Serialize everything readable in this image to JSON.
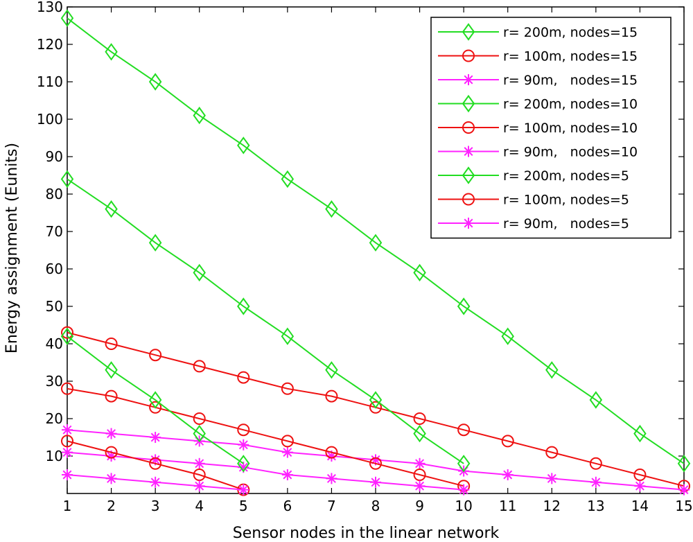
{
  "chart_data": {
    "type": "line",
    "title": "",
    "xlabel": "Sensor nodes in the linear network",
    "ylabel": "Energy assignment (Eunits)",
    "xlim": [
      1,
      15
    ],
    "ylim": [
      0,
      130
    ],
    "xticks": [
      "1",
      "2",
      "3",
      "4",
      "5",
      "6",
      "7",
      "8",
      "9",
      "10",
      "11",
      "12",
      "13",
      "14",
      "15"
    ],
    "yticks": [
      "10",
      "20",
      "30",
      "40",
      "50",
      "60",
      "70",
      "80",
      "90",
      "100",
      "110",
      "120",
      "130"
    ],
    "grid": false,
    "legend_position": "top-right",
    "colors": {
      "green": "#22dd22",
      "red": "#ee1111",
      "magenta": "#ff22ff"
    },
    "series": [
      {
        "name": "r= 200m, nodes=15",
        "color": "green",
        "marker": "diamond",
        "x": [
          1,
          2,
          3,
          4,
          5,
          6,
          7,
          8,
          9,
          10,
          11,
          12,
          13,
          14,
          15
        ],
        "y": [
          127,
          118,
          110,
          101,
          93,
          84,
          76,
          67,
          59,
          50,
          42,
          33,
          25,
          16,
          8
        ]
      },
      {
        "name": "r= 100m, nodes=15",
        "color": "red",
        "marker": "circle",
        "x": [
          1,
          2,
          3,
          4,
          5,
          6,
          7,
          8,
          9,
          10,
          11,
          12,
          13,
          14,
          15
        ],
        "y": [
          43,
          40,
          37,
          34,
          31,
          28,
          26,
          23,
          20,
          17,
          14,
          11,
          8,
          5,
          2
        ]
      },
      {
        "name": "r= 90m,   nodes=15",
        "color": "magenta",
        "marker": "star",
        "x": [
          1,
          2,
          3,
          4,
          5,
          6,
          7,
          8,
          9,
          10,
          11,
          12,
          13,
          14,
          15
        ],
        "y": [
          17,
          16,
          15,
          14,
          13,
          11,
          10,
          9,
          8,
          6,
          5,
          4,
          3,
          2,
          1
        ]
      },
      {
        "name": "r= 200m, nodes=10",
        "color": "green",
        "marker": "diamond",
        "x": [
          1,
          2,
          3,
          4,
          5,
          6,
          7,
          8,
          9,
          10
        ],
        "y": [
          84,
          76,
          67,
          59,
          50,
          42,
          33,
          25,
          16,
          8
        ]
      },
      {
        "name": "r= 100m, nodes=10",
        "color": "red",
        "marker": "circle",
        "x": [
          1,
          2,
          3,
          4,
          5,
          6,
          7,
          8,
          9,
          10
        ],
        "y": [
          28,
          26,
          23,
          20,
          17,
          14,
          11,
          8,
          5,
          2
        ]
      },
      {
        "name": "r= 90m,   nodes=10",
        "color": "magenta",
        "marker": "star",
        "x": [
          1,
          2,
          3,
          4,
          5,
          6,
          7,
          8,
          9,
          10
        ],
        "y": [
          11,
          10,
          9,
          8,
          7,
          5,
          4,
          3,
          2,
          1
        ]
      },
      {
        "name": "r= 200m, nodes=5",
        "color": "green",
        "marker": "diamond",
        "x": [
          1,
          2,
          3,
          4,
          5
        ],
        "y": [
          42,
          33,
          25,
          16,
          8
        ]
      },
      {
        "name": "r= 100m, nodes=5",
        "color": "red",
        "marker": "circle",
        "x": [
          1,
          2,
          3,
          4,
          5
        ],
        "y": [
          14,
          11,
          8,
          5,
          1
        ]
      },
      {
        "name": "r= 90m,   nodes=5",
        "color": "magenta",
        "marker": "star",
        "x": [
          1,
          2,
          3,
          4,
          5
        ],
        "y": [
          5,
          4,
          3,
          2,
          1
        ]
      }
    ]
  }
}
